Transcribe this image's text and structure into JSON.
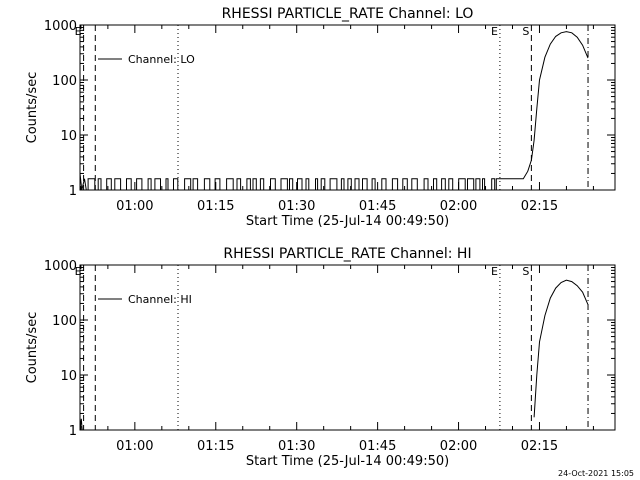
{
  "footer": {
    "timestamp": "24-Oct-2021 15:05"
  },
  "chart_data": [
    {
      "type": "line",
      "title": "RHESSI PARTICLE_RATE Channel: LO",
      "xlabel": "Start Time (25-Jul-14 00:49:50)",
      "ylabel": "Counts/sec",
      "yscale": "log",
      "ylim": [
        1,
        1000
      ],
      "xlim": [
        "00:49:50",
        "02:29:00"
      ],
      "x_ticks": [
        "01:00",
        "01:15",
        "01:30",
        "01:45",
        "02:00",
        "02:15"
      ],
      "y_ticks": [
        "1",
        "10",
        "100",
        "1000"
      ],
      "legend": {
        "position": "top-left",
        "entries": [
          "Channel: LO"
        ]
      },
      "markers": [
        {
          "label": "E",
          "time": "00:50:30",
          "style": "dashed"
        },
        {
          "label": "",
          "time": "00:52:40",
          "style": "dashed"
        },
        {
          "label": "",
          "time": "01:08:00",
          "style": "dotted"
        },
        {
          "label": "E",
          "time": "02:07:40",
          "style": "dotted"
        },
        {
          "label": "S",
          "time": "02:13:30",
          "style": "dashed"
        },
        {
          "label": "",
          "time": "02:24:00",
          "style": "dashdot"
        }
      ],
      "series": [
        {
          "name": "Channel: LO",
          "noise_range": [
            "00:51:00",
            "02:07:00"
          ],
          "noise_values": [
            1,
            1.6
          ],
          "points": [
            [
              "00:49:50",
              2.0
            ],
            [
              "00:50:10",
              1.0
            ],
            [
              "00:50:40",
              1.6
            ],
            [
              "00:51:00",
              1.0
            ],
            [
              "02:07:00",
              1.6
            ],
            [
              "02:10:30",
              1.6
            ],
            [
              "02:12:00",
              1.6
            ],
            [
              "02:12:50",
              2.2
            ],
            [
              "02:13:30",
              3.5
            ],
            [
              "02:14:00",
              8
            ],
            [
              "02:14:30",
              30
            ],
            [
              "02:15:00",
              100
            ],
            [
              "02:16:00",
              260
            ],
            [
              "02:17:00",
              450
            ],
            [
              "02:18:00",
              620
            ],
            [
              "02:19:00",
              720
            ],
            [
              "02:20:00",
              760
            ],
            [
              "02:21:00",
              720
            ],
            [
              "02:22:00",
              600
            ],
            [
              "02:23:00",
              430
            ],
            [
              "02:24:00",
              250
            ]
          ]
        }
      ]
    },
    {
      "type": "line",
      "title": "RHESSI PARTICLE_RATE Channel: HI",
      "xlabel": "Start Time (25-Jul-14 00:49:50)",
      "ylabel": "Counts/sec",
      "yscale": "log",
      "ylim": [
        1,
        1000
      ],
      "xlim": [
        "00:49:50",
        "02:29:00"
      ],
      "x_ticks": [
        "01:00",
        "01:15",
        "01:30",
        "01:45",
        "02:00",
        "02:15"
      ],
      "y_ticks": [
        "1",
        "10",
        "100",
        "1000"
      ],
      "legend": {
        "position": "top-left",
        "entries": [
          "Channel: HI"
        ]
      },
      "markers": [
        {
          "label": "E",
          "time": "00:50:30",
          "style": "dashed"
        },
        {
          "label": "",
          "time": "00:52:40",
          "style": "dashed"
        },
        {
          "label": "",
          "time": "01:08:00",
          "style": "dotted"
        },
        {
          "label": "E",
          "time": "02:07:40",
          "style": "dotted"
        },
        {
          "label": "S",
          "time": "02:13:30",
          "style": "dashed"
        },
        {
          "label": "",
          "time": "02:24:00",
          "style": "dashdot"
        }
      ],
      "series": [
        {
          "name": "Channel: HI",
          "points": [
            [
              "00:49:50",
              1.0
            ],
            [
              "00:50:05",
              1.6
            ],
            [
              "00:50:15",
              1.0
            ],
            [
              "02:14:00",
              1.7
            ],
            [
              "02:14:30",
              10
            ],
            [
              "02:15:00",
              40
            ],
            [
              "02:16:00",
              120
            ],
            [
              "02:17:00",
              250
            ],
            [
              "02:18:00",
              380
            ],
            [
              "02:19:00",
              480
            ],
            [
              "02:20:00",
              530
            ],
            [
              "02:21:00",
              500
            ],
            [
              "02:22:00",
              420
            ],
            [
              "02:23:00",
              320
            ],
            [
              "02:24:00",
              190
            ]
          ]
        }
      ]
    }
  ]
}
